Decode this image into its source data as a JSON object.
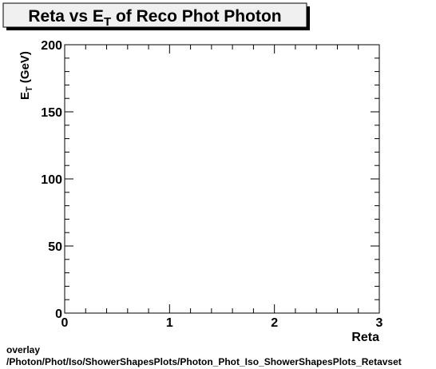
{
  "title_parts": {
    "prefix": "Reta vs E",
    "sub": "T",
    "suffix": " of Reco Phot Photon"
  },
  "footer": {
    "line1": "overlay",
    "line2": "/Photon/Phot/Iso/ShowerShapesPlots/Photon_Phot_Iso_ShowerShapesPlots_Retavset"
  },
  "chart_data": {
    "type": "scatter",
    "title": "Reta vs ET of Reco Phot Photon",
    "xlabel": "Reta",
    "ylabel_parts": {
      "main": "E",
      "sub": "T",
      "unit": " (GeV)"
    },
    "xlim": [
      0,
      3
    ],
    "ylim": [
      0,
      200
    ],
    "x_ticks": [
      "0",
      "1",
      "2",
      "3"
    ],
    "y_ticks": [
      "0",
      "50",
      "100",
      "150",
      "200"
    ],
    "grid": false,
    "points": []
  }
}
